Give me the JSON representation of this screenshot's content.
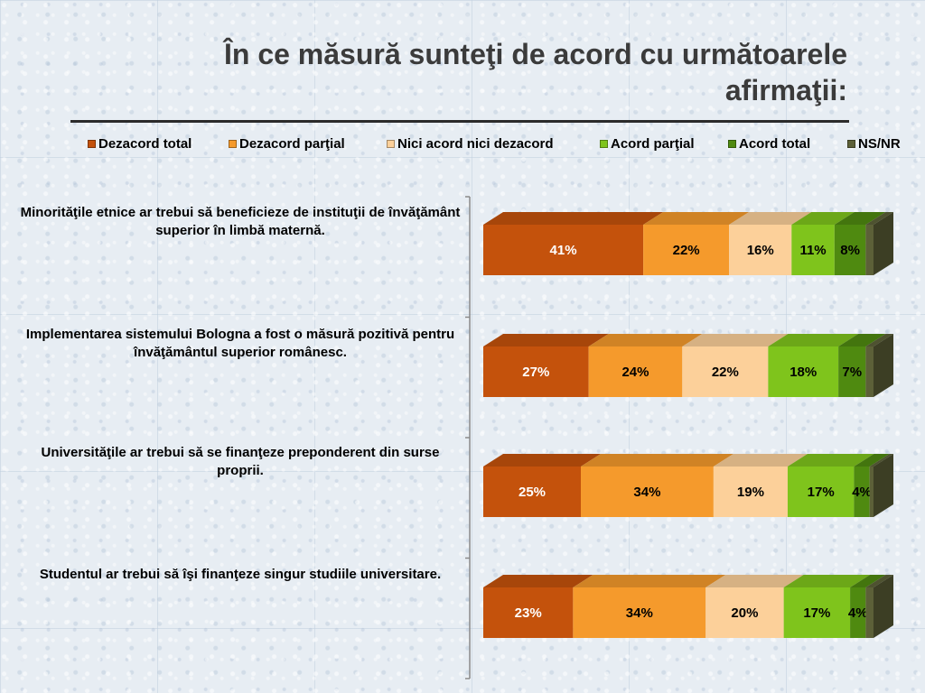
{
  "title": "În ce măsură sunteţi de acord cu următoarele afirmaţii:",
  "chart_data": {
    "type": "bar",
    "orientation": "horizontal",
    "stacked": true,
    "percent_stacked": true,
    "three_d": true,
    "title": "În ce măsură sunteţi de acord cu următoarele afirmaţii:",
    "legend_position": "top",
    "series_colors": [
      "#c4520c",
      "#f59a2c",
      "#fcd09a",
      "#7fc41c",
      "#4f8a10",
      "#5c6038"
    ],
    "categories": [
      "Minorităţile etnice ar trebui să beneficieze de instituţii de învăţământ superior în limbă maternă.",
      "Implementarea sistemului Bologna a fost o măsură pozitivă pentru învăţământul superior românesc.",
      "Universităţile ar trebui să se finanţeze preponderent din surse proprii.",
      "Studentul ar trebui să îşi finanţeze singur studiile universitare."
    ],
    "series": [
      {
        "name": "Dezacord total",
        "values": [
          41,
          27,
          25,
          23
        ],
        "labels": [
          "41%",
          "27%",
          "25%",
          "23%"
        ]
      },
      {
        "name": "Dezacord parţial",
        "values": [
          22,
          24,
          34,
          34
        ],
        "labels": [
          "22%",
          "24%",
          "34%",
          "34%"
        ]
      },
      {
        "name": "Nici acord nici dezacord",
        "values": [
          16,
          22,
          19,
          20
        ],
        "labels": [
          "16%",
          "22%",
          "19%",
          "20%"
        ]
      },
      {
        "name": "Acord parţial",
        "values": [
          11,
          18,
          17,
          17
        ],
        "labels": [
          "11%",
          "18%",
          "17%",
          "17%"
        ]
      },
      {
        "name": "Acord total",
        "values": [
          8,
          7,
          4,
          4
        ],
        "labels": [
          "8%",
          "7%",
          "4%",
          "4%"
        ]
      },
      {
        "name": "NS/NR",
        "values": [
          2,
          2,
          1,
          2
        ],
        "labels": [
          "",
          "",
          "",
          ""
        ]
      }
    ]
  }
}
